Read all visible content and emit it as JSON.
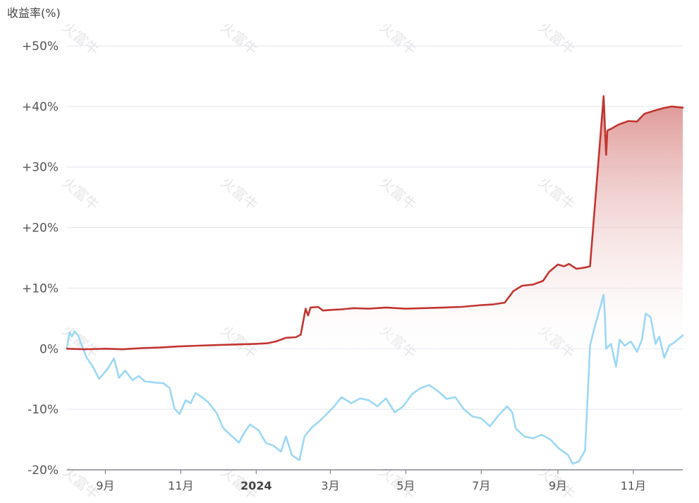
{
  "chart_data": {
    "type": "area",
    "ylabel": "收益率(%)",
    "ylim": [
      -20,
      50
    ],
    "y_ticks": [
      {
        "value": 50,
        "label": "+50%"
      },
      {
        "value": 40,
        "label": "+40%"
      },
      {
        "value": 30,
        "label": "+30%"
      },
      {
        "value": 20,
        "label": "+20%"
      },
      {
        "value": 10,
        "label": "+10%"
      },
      {
        "value": 0,
        "label": "0%"
      },
      {
        "value": -10,
        "label": "-10%"
      },
      {
        "value": -20,
        "label": "-20%"
      }
    ],
    "x_ticks": [
      {
        "date": "2023-09-01",
        "label": "9月",
        "bold": false
      },
      {
        "date": "2023-11-01",
        "label": "11月",
        "bold": false
      },
      {
        "date": "2024-01-01",
        "label": "2024",
        "bold": true
      },
      {
        "date": "2024-03-01",
        "label": "3月",
        "bold": false
      },
      {
        "date": "2024-05-01",
        "label": "5月",
        "bold": false
      },
      {
        "date": "2024-07-01",
        "label": "7月",
        "bold": false
      },
      {
        "date": "2024-09-01",
        "label": "9月",
        "bold": false
      },
      {
        "date": "2024-11-01",
        "label": "11月",
        "bold": false
      }
    ],
    "xlim": [
      "2023-08-01",
      "2024-12-11"
    ],
    "grid": true,
    "watermark": "火富牛",
    "series": [
      {
        "color": "#c23531",
        "fill": true,
        "points": [
          [
            "2023-08-01",
            0.0
          ],
          [
            "2023-08-15",
            -0.1
          ],
          [
            "2023-09-01",
            0.0
          ],
          [
            "2023-09-15",
            -0.1
          ],
          [
            "2023-10-01",
            0.1
          ],
          [
            "2023-10-15",
            0.2
          ],
          [
            "2023-11-01",
            0.4
          ],
          [
            "2023-11-15",
            0.5
          ],
          [
            "2023-12-01",
            0.6
          ],
          [
            "2023-12-15",
            0.7
          ],
          [
            "2024-01-01",
            0.8
          ],
          [
            "2024-01-10",
            0.9
          ],
          [
            "2024-01-17",
            1.2
          ],
          [
            "2024-01-25",
            1.8
          ],
          [
            "2024-02-02",
            1.9
          ],
          [
            "2024-02-06",
            2.3
          ],
          [
            "2024-02-10",
            6.6
          ],
          [
            "2024-02-12",
            5.5
          ],
          [
            "2024-02-14",
            6.8
          ],
          [
            "2024-02-20",
            6.9
          ],
          [
            "2024-02-24",
            6.3
          ],
          [
            "2024-03-01",
            6.4
          ],
          [
            "2024-03-10",
            6.5
          ],
          [
            "2024-03-20",
            6.7
          ],
          [
            "2024-04-01",
            6.6
          ],
          [
            "2024-04-15",
            6.8
          ],
          [
            "2024-05-01",
            6.6
          ],
          [
            "2024-05-15",
            6.7
          ],
          [
            "2024-06-01",
            6.8
          ],
          [
            "2024-06-15",
            6.9
          ],
          [
            "2024-07-01",
            7.2
          ],
          [
            "2024-07-10",
            7.3
          ],
          [
            "2024-07-20",
            7.6
          ],
          [
            "2024-07-27",
            9.5
          ],
          [
            "2024-08-03",
            10.4
          ],
          [
            "2024-08-12",
            10.6
          ],
          [
            "2024-08-20",
            11.2
          ],
          [
            "2024-08-25",
            12.7
          ],
          [
            "2024-09-01",
            13.9
          ],
          [
            "2024-09-06",
            13.6
          ],
          [
            "2024-09-10",
            14.0
          ],
          [
            "2024-09-16",
            13.2
          ],
          [
            "2024-09-23",
            13.4
          ],
          [
            "2024-09-27",
            13.6
          ],
          [
            "2024-10-08",
            41.7
          ],
          [
            "2024-10-10",
            32.0
          ],
          [
            "2024-10-11",
            36.0
          ],
          [
            "2024-10-14",
            36.3
          ],
          [
            "2024-10-20",
            37.0
          ],
          [
            "2024-10-28",
            37.6
          ],
          [
            "2024-11-04",
            37.5
          ],
          [
            "2024-11-10",
            38.8
          ],
          [
            "2024-11-18",
            39.3
          ],
          [
            "2024-11-25",
            39.7
          ],
          [
            "2024-12-02",
            40.0
          ],
          [
            "2024-12-11",
            39.8
          ]
        ]
      },
      {
        "color": "#9cd8f6",
        "fill": false,
        "points": [
          [
            "2023-08-01",
            0.2
          ],
          [
            "2023-08-03",
            2.7
          ],
          [
            "2023-08-05",
            2.0
          ],
          [
            "2023-08-07",
            2.9
          ],
          [
            "2023-08-10",
            2.2
          ],
          [
            "2023-08-13",
            0.5
          ],
          [
            "2023-08-17",
            -1.5
          ],
          [
            "2023-08-22",
            -3.0
          ],
          [
            "2023-08-27",
            -5.0
          ],
          [
            "2023-09-03",
            -3.3
          ],
          [
            "2023-09-08",
            -1.6
          ],
          [
            "2023-09-12",
            -4.8
          ],
          [
            "2023-09-17",
            -3.6
          ],
          [
            "2023-09-23",
            -5.2
          ],
          [
            "2023-09-28",
            -4.5
          ],
          [
            "2023-10-03",
            -5.4
          ],
          [
            "2023-10-12",
            -5.6
          ],
          [
            "2023-10-18",
            -5.7
          ],
          [
            "2023-10-23",
            -6.5
          ],
          [
            "2023-10-27",
            -9.9
          ],
          [
            "2023-10-31",
            -10.8
          ],
          [
            "2023-11-05",
            -8.5
          ],
          [
            "2023-11-09",
            -9.0
          ],
          [
            "2023-11-13",
            -7.3
          ],
          [
            "2023-11-18",
            -8.0
          ],
          [
            "2023-11-23",
            -8.8
          ],
          [
            "2023-11-30",
            -10.6
          ],
          [
            "2023-12-05",
            -13.0
          ],
          [
            "2023-12-11",
            -14.2
          ],
          [
            "2023-12-18",
            -15.5
          ],
          [
            "2023-12-22",
            -14.0
          ],
          [
            "2023-12-27",
            -12.5
          ],
          [
            "2024-01-03",
            -13.5
          ],
          [
            "2024-01-09",
            -15.6
          ],
          [
            "2024-01-15",
            -16.0
          ],
          [
            "2024-01-21",
            -17.0
          ],
          [
            "2024-01-25",
            -14.5
          ],
          [
            "2024-01-30",
            -17.6
          ],
          [
            "2024-02-05",
            -18.4
          ],
          [
            "2024-02-09",
            -14.5
          ],
          [
            "2024-02-15",
            -13.0
          ],
          [
            "2024-02-21",
            -12.0
          ],
          [
            "2024-02-27",
            -10.8
          ],
          [
            "2024-03-04",
            -9.5
          ],
          [
            "2024-03-10",
            -8.0
          ],
          [
            "2024-03-18",
            -9.0
          ],
          [
            "2024-03-25",
            -8.2
          ],
          [
            "2024-04-01",
            -8.5
          ],
          [
            "2024-04-08",
            -9.5
          ],
          [
            "2024-04-15",
            -8.2
          ],
          [
            "2024-04-22",
            -10.5
          ],
          [
            "2024-04-29",
            -9.5
          ],
          [
            "2024-05-06",
            -7.5
          ],
          [
            "2024-05-13",
            -6.5
          ],
          [
            "2024-05-20",
            -6.0
          ],
          [
            "2024-05-27",
            -7.0
          ],
          [
            "2024-06-03",
            -8.3
          ],
          [
            "2024-06-10",
            -8.0
          ],
          [
            "2024-06-17",
            -10.0
          ],
          [
            "2024-06-24",
            -11.2
          ],
          [
            "2024-07-01",
            -11.5
          ],
          [
            "2024-07-08",
            -12.8
          ],
          [
            "2024-07-15",
            -11.0
          ],
          [
            "2024-07-22",
            -9.5
          ],
          [
            "2024-07-26",
            -10.5
          ],
          [
            "2024-07-29",
            -13.2
          ],
          [
            "2024-08-05",
            -14.5
          ],
          [
            "2024-08-12",
            -14.8
          ],
          [
            "2024-08-19",
            -14.2
          ],
          [
            "2024-08-26",
            -15.0
          ],
          [
            "2024-09-02",
            -16.5
          ],
          [
            "2024-09-09",
            -17.5
          ],
          [
            "2024-09-13",
            -19.0
          ],
          [
            "2024-09-18",
            -18.6
          ],
          [
            "2024-09-23",
            -16.8
          ],
          [
            "2024-09-24",
            -12.5
          ],
          [
            "2024-09-27",
            0.5
          ],
          [
            "2024-09-30",
            3.0
          ],
          [
            "2024-10-08",
            8.9
          ],
          [
            "2024-10-09",
            5.5
          ],
          [
            "2024-10-10",
            0.0
          ],
          [
            "2024-10-14",
            0.8
          ],
          [
            "2024-10-18",
            -3.0
          ],
          [
            "2024-10-21",
            1.5
          ],
          [
            "2024-10-25",
            0.5
          ],
          [
            "2024-10-30",
            1.2
          ],
          [
            "2024-11-04",
            -0.5
          ],
          [
            "2024-11-08",
            1.5
          ],
          [
            "2024-11-11",
            5.8
          ],
          [
            "2024-11-15",
            5.2
          ],
          [
            "2024-11-19",
            0.8
          ],
          [
            "2024-11-22",
            2.0
          ],
          [
            "2024-11-26",
            -1.5
          ],
          [
            "2024-11-30",
            0.5
          ],
          [
            "2024-12-04",
            1.0
          ],
          [
            "2024-12-11",
            2.2
          ]
        ]
      }
    ]
  }
}
